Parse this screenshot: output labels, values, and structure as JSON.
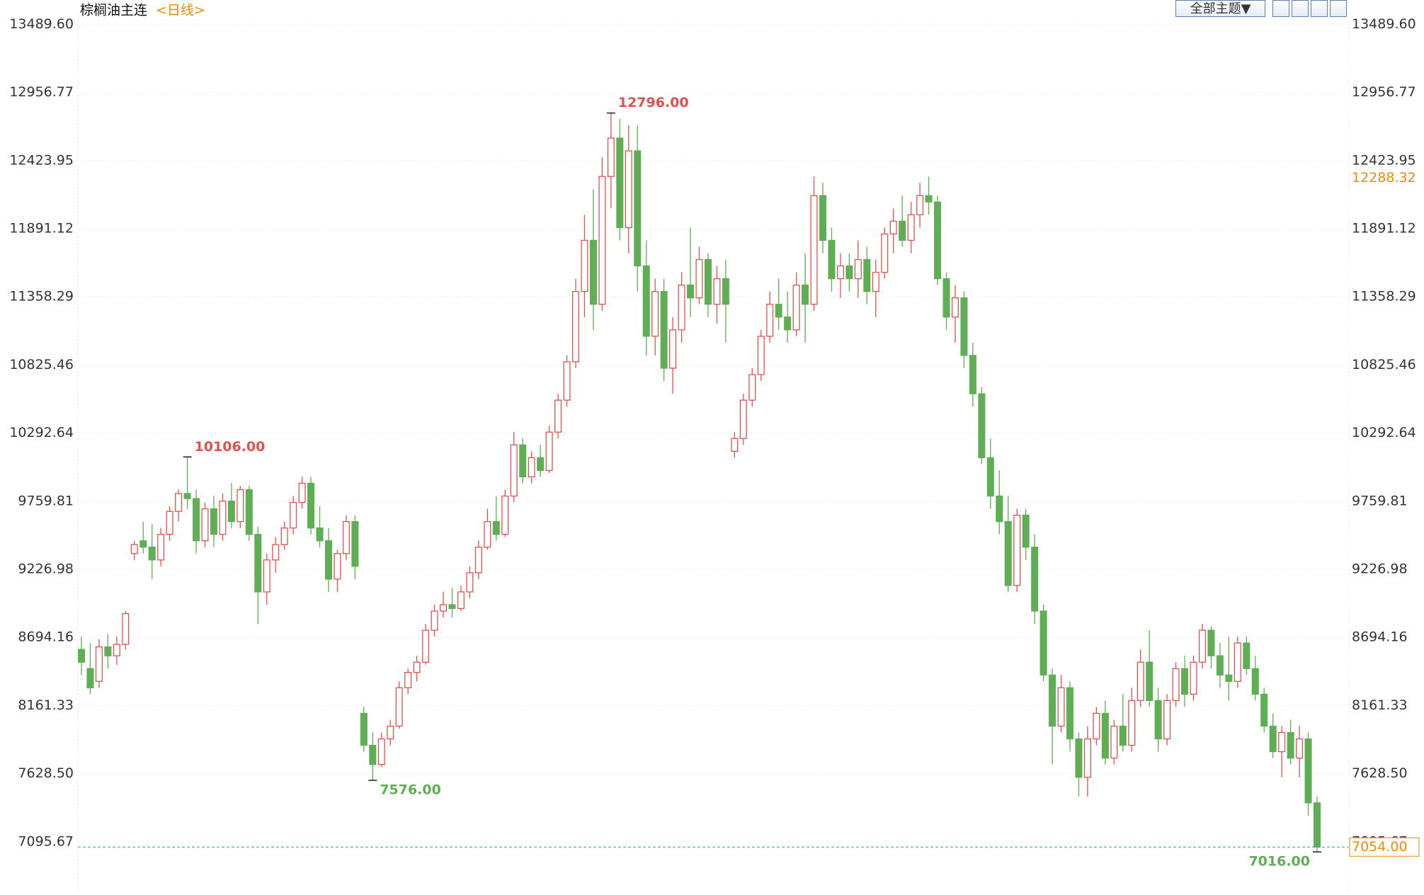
{
  "chart_data": {
    "type": "candlestick",
    "title": "棕榈油主连",
    "subtitle": "<日线>",
    "theme_button": "全部主题▼",
    "ylim": [
      6690,
      13575
    ],
    "yticks": [
      {
        "value": 13489.6,
        "label": "13489.60"
      },
      12956.77,
      12423.95,
      11891.12,
      11358.29,
      10825.46,
      10292.64,
      9759.81,
      9226.98,
      8694.16,
      8161.33,
      {
        "value": 7628.5,
        "label": "7628.50"
      },
      7095.67
    ],
    "grid": true,
    "up_color": "#e0514f",
    "down_color": "#5fae55",
    "open": [
      8600,
      8450,
      8350,
      8620,
      8550,
      8640,
      9350,
      9450,
      9400,
      9300,
      9500,
      9680,
      9820,
      9780,
      9450,
      9700,
      9500,
      9760,
      9600,
      9850,
      9500,
      9050,
      9300,
      9420,
      9550,
      9750,
      9900,
      9550,
      9450,
      9150,
      9350,
      9600,
      8100,
      7850,
      7700,
      7900,
      8000,
      8300,
      8420,
      8500,
      8750,
      8900,
      8950,
      8920,
      9050,
      9200,
      9400,
      9600,
      9500,
      9800,
      10200,
      9950,
      10100,
      10000,
      10300,
      10550,
      10850,
      11400,
      11800,
      11300,
      12300,
      12600,
      11900,
      12500,
      11600,
      11050,
      11400,
      10800,
      11100,
      11450,
      11350,
      11650,
      11300,
      11500,
      10150,
      10250,
      10550,
      10750,
      11050,
      11300,
      11200,
      11100,
      11450,
      11300,
      12150,
      11800,
      11500,
      11600,
      11500,
      11650,
      11400,
      11550,
      11850,
      11950,
      11800,
      12000,
      12150,
      12100,
      11500,
      11200,
      11350,
      10900,
      10600,
      10100,
      9800,
      9600,
      9100,
      9650,
      9400,
      8900,
      8400,
      8000,
      8300,
      7900,
      7600,
      7900,
      8100,
      7750,
      8000,
      7850,
      8200,
      8500,
      8200,
      7900,
      8200,
      8450,
      8250,
      8500,
      8750,
      8550,
      8400,
      8350,
      8650,
      8450,
      8250,
      8000,
      7800,
      7950,
      7750,
      7900,
      7400
    ],
    "high": [
      8700,
      8650,
      8680,
      8720,
      8700,
      8900,
      9450,
      9600,
      9580,
      9550,
      9720,
      9850,
      10106,
      9850,
      9750,
      9800,
      9820,
      9900,
      9880,
      9880,
      9560,
      9350,
      9480,
      9600,
      9800,
      9950,
      9950,
      9720,
      9550,
      9380,
      9650,
      9650,
      8150,
      7950,
      7950,
      8050,
      8350,
      8450,
      8550,
      8800,
      8950,
      9050,
      9080,
      9100,
      9250,
      9450,
      9700,
      9800,
      9850,
      10300,
      10250,
      10150,
      10200,
      10350,
      10600,
      10900,
      11500,
      12000,
      12200,
      12450,
      12796,
      12750,
      12700,
      12700,
      11800,
      11500,
      11500,
      11200,
      11550,
      11900,
      11750,
      11700,
      11600,
      11650,
      10300,
      10600,
      10800,
      11100,
      11400,
      11500,
      11400,
      11550,
      11700,
      12300,
      12250,
      11900,
      11700,
      11700,
      11800,
      11750,
      11650,
      11900,
      12050,
      12150,
      12100,
      12250,
      12300,
      12150,
      11550,
      11450,
      11400,
      11000,
      10650,
      10250,
      10000,
      9800,
      9700,
      9700,
      9500,
      8950,
      8450,
      8400,
      8350,
      7950,
      8000,
      8150,
      8200,
      8050,
      8250,
      8300,
      8600,
      8750,
      8300,
      8250,
      8500,
      8550,
      8550,
      8800,
      8780,
      8650,
      8700,
      8700,
      8700,
      8550,
      8300,
      8100,
      8000,
      8050,
      8000,
      7950,
      7450
    ],
    "low": [
      8400,
      8250,
      8300,
      8450,
      8480,
      8600,
      9300,
      9350,
      9150,
      9250,
      9450,
      9600,
      9700,
      9350,
      9400,
      9400,
      9450,
      9550,
      9550,
      9450,
      8800,
      8950,
      9200,
      9380,
      9500,
      9700,
      9500,
      9400,
      9050,
      9050,
      9300,
      9150,
      7800,
      7576,
      7680,
      7850,
      7980,
      8250,
      8350,
      8480,
      8700,
      8850,
      8850,
      8900,
      9000,
      9150,
      9380,
      9450,
      9480,
      9750,
      9900,
      9900,
      9950,
      9980,
      10250,
      10500,
      10800,
      11200,
      11100,
      11250,
      12050,
      11800,
      11700,
      11400,
      10900,
      10900,
      10700,
      10600,
      11000,
      11200,
      11300,
      11200,
      11150,
      11000,
      10100,
      10200,
      10500,
      10700,
      11000,
      11100,
      11000,
      11050,
      11000,
      11250,
      11700,
      11400,
      11350,
      11400,
      11350,
      11300,
      11200,
      11500,
      11700,
      11750,
      11700,
      11900,
      12000,
      11450,
      11100,
      11000,
      10800,
      10500,
      10050,
      9700,
      9500,
      9050,
      9050,
      9300,
      8800,
      8350,
      7700,
      7950,
      7800,
      7450,
      7450,
      7850,
      7700,
      7700,
      7800,
      7800,
      8150,
      8150,
      7800,
      7850,
      8150,
      8150,
      8200,
      8450,
      8450,
      8300,
      8200,
      8300,
      8400,
      8200,
      7950,
      7750,
      7600,
      7700,
      7600,
      7300,
      7016
    ],
    "close": [
      8500,
      8300,
      8620,
      8550,
      8640,
      8880,
      9420,
      9400,
      9300,
      9500,
      9680,
      9820,
      9780,
      9450,
      9700,
      9500,
      9760,
      9600,
      9850,
      9500,
      9050,
      9300,
      9420,
      9550,
      9750,
      9900,
      9550,
      9450,
      9150,
      9350,
      9600,
      9250,
      7850,
      7700,
      7900,
      8000,
      8300,
      8420,
      8500,
      8750,
      8900,
      8950,
      8920,
      9050,
      9200,
      9400,
      9600,
      9500,
      9800,
      10200,
      9950,
      10100,
      10000,
      10300,
      10550,
      10850,
      11400,
      11800,
      11300,
      12300,
      12600,
      11900,
      12500,
      11600,
      11050,
      11400,
      10800,
      11100,
      11450,
      11350,
      11650,
      11300,
      11500,
      11300,
      10250,
      10550,
      10750,
      11050,
      11300,
      11200,
      11100,
      11450,
      11300,
      12150,
      11800,
      11500,
      11600,
      11500,
      11650,
      11400,
      11550,
      11850,
      11950,
      11800,
      12000,
      12150,
      12100,
      11500,
      11200,
      11350,
      10900,
      10600,
      10100,
      9800,
      9600,
      9100,
      9650,
      9400,
      8900,
      8400,
      8000,
      8300,
      7900,
      7600,
      7900,
      8100,
      7750,
      8000,
      7850,
      8200,
      8500,
      8200,
      7900,
      8200,
      8450,
      8250,
      8500,
      8750,
      8550,
      8400,
      8350,
      8650,
      8450,
      8250,
      8000,
      7800,
      7950,
      7750,
      7900,
      7400,
      7054
    ],
    "annotations": [
      {
        "label": "10106.00",
        "value": 10106,
        "color": "#e0514f"
      },
      {
        "label": "12796.00",
        "value": 12796,
        "color": "#e0514f"
      },
      {
        "label": "7576.00",
        "value": 7576,
        "color": "#5fae55"
      },
      {
        "label": "7016.00",
        "value": 7016,
        "color": "#5fae55"
      }
    ],
    "price_markers": [
      {
        "label": "12288.32",
        "value": 12288.32,
        "color": "#f08c00",
        "line": false
      },
      {
        "label": "7054.00",
        "value": 7054,
        "color": "#f08c00",
        "line": true
      }
    ]
  }
}
